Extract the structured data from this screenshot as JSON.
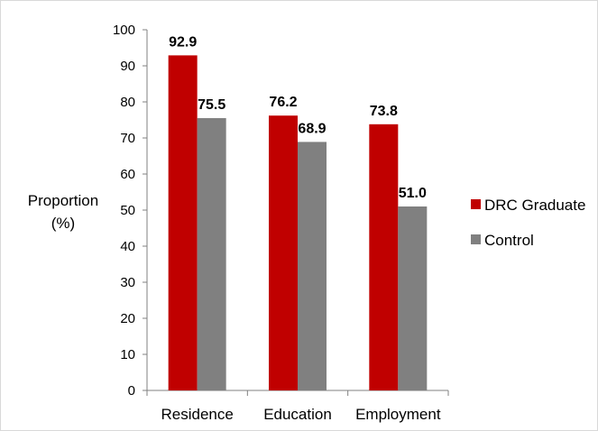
{
  "chart_data": {
    "type": "bar",
    "categories": [
      "Residence",
      "Education",
      "Employment"
    ],
    "series": [
      {
        "name": "DRC Graduate",
        "values": [
          92.9,
          76.2,
          73.8
        ],
        "color": "#c00000"
      },
      {
        "name": "Control",
        "values": [
          75.5,
          68.9,
          51.0
        ],
        "color": "#808080"
      }
    ],
    "data_labels": [
      [
        "92.9",
        "76.2",
        "73.8"
      ],
      [
        "75.5",
        "68.9",
        "51.0"
      ]
    ],
    "ylabel_line1": "Proportion",
    "ylabel_line2": "(%)",
    "ylim": [
      0,
      100
    ],
    "yticks": [
      0,
      10,
      20,
      30,
      40,
      50,
      60,
      70,
      80,
      90,
      100
    ],
    "grid": false,
    "legend_position": "right"
  }
}
